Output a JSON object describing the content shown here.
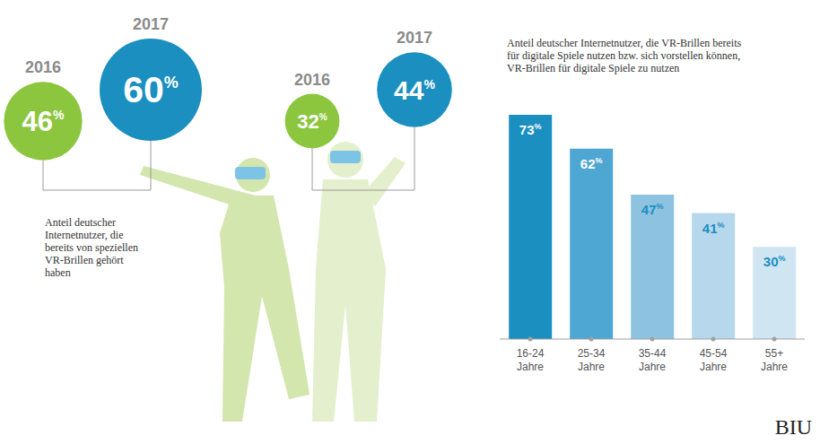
{
  "circles": [
    {
      "label": "Anteil deutscher Internetnutzer, die bereits von speziellen VR-Brillen gehört haben",
      "items": [
        {
          "year": "2016",
          "value": 46,
          "value_label": "46%",
          "color": "#8cc63f"
        },
        {
          "year": "2017",
          "value": 60,
          "value_label": "60%",
          "color": "#1a8fc0"
        }
      ]
    },
    {
      "items": [
        {
          "year": "2016",
          "value": 32,
          "value_label": "32%",
          "color": "#8cc63f"
        },
        {
          "year": "2017",
          "value": 44,
          "value_label": "44%",
          "color": "#1a8fc0"
        }
      ]
    }
  ],
  "chart_data": {
    "type": "bar",
    "title": "Anteil deutscher Internetnutzer, die VR-Brillen bereits für digitale Spiele nutzen bzw. sich vorstellen können, VR-Brillen für digitale Spiele zu nutzen",
    "categories": [
      "16-24 Jahre",
      "25-34 Jahre",
      "35-44 Jahre",
      "45-54 Jahre",
      "55+ Jahre"
    ],
    "values": [
      73,
      62,
      47,
      41,
      30
    ],
    "value_labels": [
      "73%",
      "62%",
      "47%",
      "41%",
      "30%"
    ],
    "colors": [
      "#1a8fc0",
      "#4ea6d2",
      "#8dc3e1",
      "#b7d8ec",
      "#d0e5f2"
    ],
    "data_labels": true,
    "tick_labels": "x",
    "ylim": [
      0,
      73
    ]
  },
  "logo": "BIU"
}
